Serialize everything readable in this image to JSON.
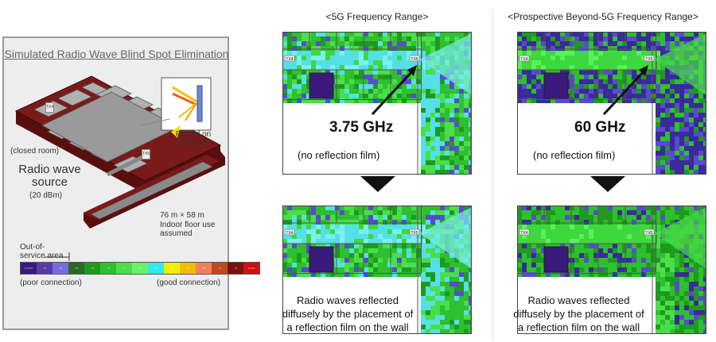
{
  "left": {
    "title": "Simulated Radio Wave Blind Spot Elimination",
    "tx_label": "TX4",
    "tx_label2": "TX5",
    "placed_on_wall": "Placed on the wall",
    "closed_room": "(closed room)",
    "radio_wave_source": "Radio wave source",
    "source_power": "(20 dBm)",
    "dimensions": "76 m × 58 m",
    "floor_use": "Indoor floor use assumed",
    "out_of_service": "Out-of-service area",
    "poor": "(poor connection)",
    "good": "(good connection)",
    "legend_colors": [
      "#3a1a7a",
      "#5a3aaa",
      "#7a6ae0",
      "#2a6a2a",
      "#1f9a1f",
      "#2ec02e",
      "#4ade4a",
      "#6af06a",
      "#33e8e8",
      "#f0f000",
      "#f0c000",
      "#f08060",
      "#c04a20",
      "#7a1010",
      "#d01010"
    ],
    "legend_ticks": [
      "-100dBm",
      "-95",
      "-90",
      "-85",
      "-80",
      "-75",
      "-70",
      "-65",
      "-60",
      "-55",
      "-50",
      "-45",
      "-40",
      "-35",
      "-30dBm"
    ]
  },
  "five_g": {
    "header": "<5G Frequency Range>",
    "freq": "3.75 GHz",
    "no_film": "(no reflection film)",
    "with_film": "Radio waves reflected diffusely by the placement of a reflection film on the wall",
    "tx_label": "TX4",
    "tx_label2": "TX5"
  },
  "beyond": {
    "header": "<Prospective Beyond-5G Frequency Range>",
    "freq": "60 GHz",
    "no_film": "(no reflection film)",
    "with_film": "Radio waves reflected diffusely by the placement of a reflection film on the wall",
    "tx_label": "TX4",
    "tx_label2": "TX5"
  },
  "colors": {
    "map_base": "#22b422",
    "corridor_5g": "#55e0e8",
    "corridor_60g": "#3ed83e",
    "room_purple": "#3a1a7a",
    "floor_maroon": "#7a1a1a"
  }
}
